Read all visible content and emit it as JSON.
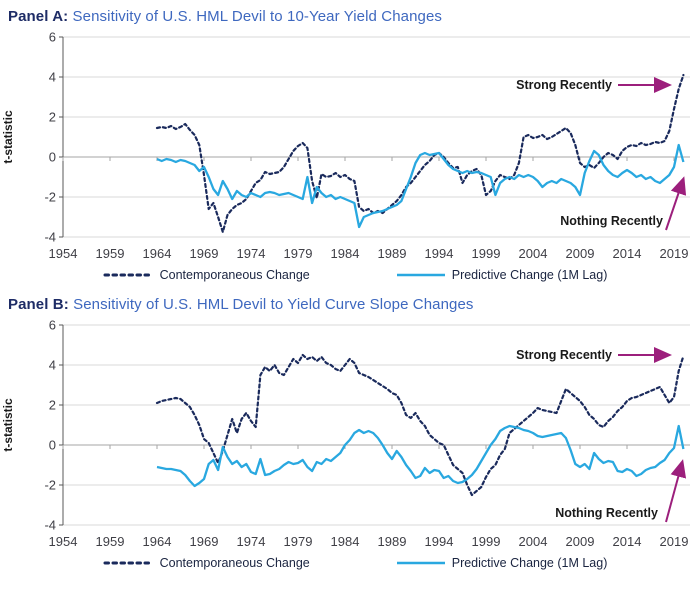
{
  "colors": {
    "navy": "#1a2a5c",
    "blue": "#29a8e0",
    "purple": "#9c1f7c",
    "panel_label_navy": "#1e2c66",
    "title_blue": "#3e68bf",
    "gridline": "#d9d9d9",
    "zero_line": "#a6a6a6",
    "axis_line": "#595959",
    "tick_text": "#3f3f46",
    "annotation_text": "#1a1a1a"
  },
  "chart_data": [
    {
      "type": "line",
      "panel_label": "Panel A:",
      "title": "Sensitivity of U.S. HML Devil to 10-Year Yield Changes",
      "ylabel": "t-statistic",
      "ylim": [
        -4,
        6
      ],
      "yticks": [
        6,
        4,
        2,
        0,
        -2,
        -4
      ],
      "xticks": [
        1954,
        1959,
        1964,
        1969,
        1974,
        1979,
        1984,
        1989,
        1994,
        1999,
        2004,
        2009,
        2014,
        2019
      ],
      "grid": "horizontal",
      "legend_position": "bottom",
      "annotations": {
        "strong": "Strong Recently",
        "nothing": "Nothing Recently"
      },
      "x_start": 1964,
      "x_step": 0.5,
      "series": [
        {
          "name": "Contemporaneous Change",
          "style": "dashed",
          "color_key": "navy",
          "values": [
            1.45,
            1.5,
            1.45,
            1.55,
            1.4,
            1.5,
            1.65,
            1.35,
            1.1,
            0.6,
            -0.9,
            -2.6,
            -2.3,
            -3.0,
            -3.75,
            -2.9,
            -2.6,
            -2.4,
            -2.3,
            -2.1,
            -1.7,
            -1.3,
            -1.15,
            -0.75,
            -0.85,
            -0.8,
            -0.75,
            -0.5,
            -0.1,
            0.3,
            0.55,
            0.7,
            0.45,
            -1.2,
            -2.05,
            -0.85,
            -1.0,
            -0.95,
            -0.8,
            -1.0,
            -0.9,
            -1.1,
            -1.2,
            -2.5,
            -2.7,
            -2.6,
            -2.8,
            -2.7,
            -2.8,
            -2.6,
            -2.4,
            -2.2,
            -1.9,
            -1.5,
            -1.3,
            -1.0,
            -0.7,
            -0.4,
            -0.2,
            0.1,
            0.2,
            0.0,
            -0.3,
            -0.55,
            -0.5,
            -1.3,
            -0.9,
            -0.7,
            -0.6,
            -0.9,
            -1.9,
            -1.7,
            -1.2,
            -0.9,
            -1.0,
            -1.1,
            -0.9,
            -0.3,
            1.0,
            1.1,
            0.95,
            1.0,
            1.1,
            0.9,
            1.0,
            1.15,
            1.3,
            1.45,
            1.2,
            0.6,
            -0.3,
            -0.5,
            -0.4,
            -0.55,
            -0.3,
            0.0,
            0.2,
            0.1,
            -0.1,
            0.3,
            0.5,
            0.6,
            0.55,
            0.7,
            0.6,
            0.65,
            0.75,
            0.7,
            0.8,
            1.3,
            2.4,
            3.4,
            4.1
          ]
        },
        {
          "name": "Predictive Change (1M Lag)",
          "style": "solid",
          "color_key": "blue",
          "values": [
            -0.1,
            -0.2,
            -0.1,
            -0.15,
            -0.25,
            -0.15,
            -0.2,
            -0.3,
            -0.4,
            -0.7,
            -0.5,
            -1.0,
            -1.6,
            -1.9,
            -1.2,
            -1.6,
            -2.1,
            -1.7,
            -1.9,
            -2.0,
            -1.8,
            -1.9,
            -2.0,
            -1.8,
            -1.75,
            -1.8,
            -1.9,
            -1.85,
            -1.8,
            -1.9,
            -2.0,
            -2.1,
            -1.0,
            -2.3,
            -1.5,
            -1.8,
            -2.0,
            -1.9,
            -2.1,
            -2.0,
            -2.1,
            -2.2,
            -2.3,
            -3.5,
            -3.0,
            -2.9,
            -2.8,
            -2.75,
            -2.7,
            -2.6,
            -2.5,
            -2.4,
            -2.2,
            -1.6,
            -1.0,
            -0.3,
            0.1,
            0.2,
            0.1,
            0.15,
            0.2,
            -0.1,
            -0.4,
            -0.6,
            -0.7,
            -0.8,
            -0.7,
            -0.8,
            -0.75,
            -0.8,
            -0.9,
            -1.0,
            -1.9,
            -1.3,
            -1.1,
            -1.0,
            -1.1,
            -0.9,
            -1.0,
            -0.9,
            -1.0,
            -1.2,
            -1.5,
            -1.3,
            -1.2,
            -1.3,
            -1.1,
            -1.2,
            -1.3,
            -1.5,
            -1.9,
            -0.8,
            -0.2,
            0.3,
            0.1,
            -0.4,
            -0.7,
            -0.9,
            -1.0,
            -0.8,
            -0.65,
            -0.8,
            -1.0,
            -0.9,
            -1.1,
            -1.0,
            -1.2,
            -1.3,
            -1.1,
            -0.9,
            -0.5,
            0.6,
            -0.25
          ]
        }
      ]
    },
    {
      "type": "line",
      "panel_label": "Panel B:",
      "title": "Sensitivity of U.S. HML Devil to Yield Curve Slope Changes",
      "ylabel": "t-statistic",
      "ylim": [
        -4,
        6
      ],
      "yticks": [
        6,
        4,
        2,
        0,
        -2,
        -4
      ],
      "xticks": [
        1954,
        1959,
        1964,
        1969,
        1974,
        1979,
        1984,
        1989,
        1994,
        1999,
        2004,
        2009,
        2014,
        2019
      ],
      "grid": "horizontal",
      "legend_position": "bottom",
      "annotations": {
        "strong": "Strong Recently",
        "nothing": "Nothing Recently"
      },
      "x_start": 1964,
      "x_step": 0.5,
      "series": [
        {
          "name": "Contemporaneous Change",
          "style": "dashed",
          "color_key": "navy",
          "values": [
            2.1,
            2.2,
            2.25,
            2.3,
            2.35,
            2.3,
            2.1,
            1.9,
            1.5,
            1.0,
            0.3,
            0.1,
            -0.4,
            -0.9,
            -0.3,
            0.5,
            1.3,
            0.6,
            1.3,
            1.6,
            1.2,
            0.9,
            3.5,
            3.9,
            3.7,
            4.0,
            3.6,
            3.5,
            3.9,
            4.3,
            4.1,
            4.5,
            4.3,
            4.4,
            4.2,
            4.4,
            4.1,
            4.0,
            3.8,
            3.7,
            4.0,
            4.3,
            4.1,
            3.6,
            3.5,
            3.4,
            3.25,
            3.1,
            2.95,
            2.8,
            2.6,
            2.5,
            2.1,
            1.5,
            1.35,
            1.6,
            1.2,
            0.95,
            0.5,
            0.3,
            0.1,
            0.0,
            -0.5,
            -1.0,
            -1.2,
            -1.4,
            -2.0,
            -2.5,
            -2.3,
            -2.1,
            -1.6,
            -1.2,
            -1.0,
            -0.5,
            -0.2,
            0.6,
            0.8,
            1.0,
            1.2,
            1.4,
            1.6,
            1.85,
            1.75,
            1.7,
            1.65,
            1.6,
            2.2,
            2.8,
            2.6,
            2.4,
            2.2,
            1.9,
            1.5,
            1.3,
            1.0,
            0.9,
            1.2,
            1.4,
            1.7,
            1.9,
            2.2,
            2.35,
            2.4,
            2.5,
            2.6,
            2.7,
            2.8,
            2.9,
            2.5,
            2.1,
            2.4,
            3.7,
            4.45
          ]
        },
        {
          "name": "Predictive Change (1M Lag)",
          "style": "solid",
          "color_key": "blue",
          "values": [
            -1.1,
            -1.15,
            -1.2,
            -1.2,
            -1.25,
            -1.3,
            -1.5,
            -1.8,
            -2.05,
            -1.9,
            -1.7,
            -0.95,
            -0.75,
            -1.25,
            -0.1,
            -0.6,
            -0.95,
            -0.8,
            -1.1,
            -0.95,
            -1.35,
            -1.45,
            -0.7,
            -1.5,
            -1.45,
            -1.3,
            -1.2,
            -1.0,
            -0.85,
            -0.95,
            -0.9,
            -0.75,
            -1.1,
            -1.3,
            -0.85,
            -0.95,
            -0.7,
            -0.8,
            -0.6,
            -0.4,
            0.0,
            0.25,
            0.6,
            0.75,
            0.6,
            0.7,
            0.6,
            0.35,
            0.0,
            -0.4,
            -0.7,
            -0.3,
            -0.6,
            -1.0,
            -1.3,
            -1.65,
            -1.55,
            -1.15,
            -1.4,
            -1.25,
            -1.3,
            -1.65,
            -1.55,
            -1.8,
            -1.9,
            -1.85,
            -1.7,
            -1.5,
            -1.2,
            -0.8,
            -0.4,
            0.0,
            0.3,
            0.7,
            0.85,
            0.95,
            0.9,
            0.85,
            0.75,
            0.7,
            0.6,
            0.45,
            0.4,
            0.45,
            0.5,
            0.55,
            0.6,
            0.35,
            -0.25,
            -0.95,
            -1.1,
            -0.95,
            -1.2,
            -0.4,
            -0.7,
            -0.9,
            -0.8,
            -0.85,
            -1.3,
            -1.35,
            -1.2,
            -1.3,
            -1.55,
            -1.45,
            -1.25,
            -1.15,
            -1.1,
            -0.9,
            -0.75,
            -0.4,
            -0.15,
            0.95,
            -0.2
          ]
        }
      ]
    }
  ]
}
